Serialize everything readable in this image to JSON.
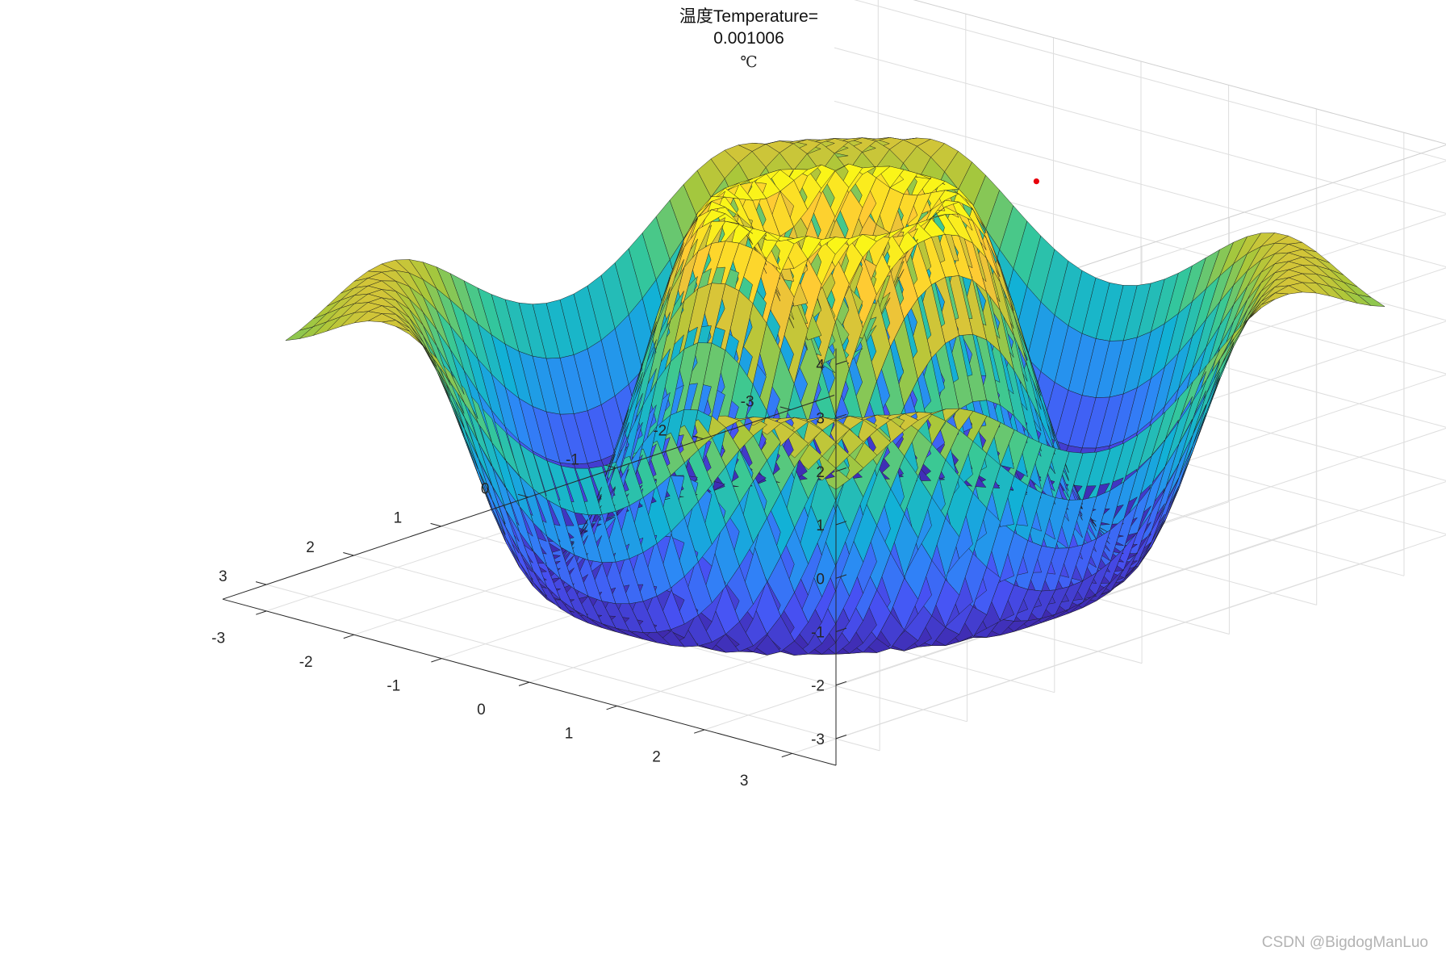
{
  "chart_data": {
    "type": "surface",
    "title_lines": [
      "温度Temperature=",
      "0.001006",
      "℃"
    ],
    "function": "z = 4·sin(r)/r − 2 for r<1, surface with central peak ring (~3.5) at r≈1.2, trough (~−3.2) at r≈2.3, and rising rim toward corners",
    "x_ticks": [
      -3,
      -2,
      -1,
      0,
      1,
      2,
      3
    ],
    "y_ticks": [
      -3,
      -2,
      -1,
      0,
      1,
      2,
      3
    ],
    "z_ticks": [
      -3,
      -2,
      -1,
      0,
      1,
      2,
      3,
      4
    ],
    "xlim": [
      -3.5,
      3.5
    ],
    "ylim": [
      -3.5,
      3.5
    ],
    "zlim": [
      -3.5,
      4.3
    ],
    "grid": true,
    "colormap": "parula",
    "marker": {
      "color": "#e8000b",
      "x": -0.9,
      "y": 1.4,
      "z": 3.6
    }
  },
  "watermark": "CSDN @BigdogManLuo"
}
